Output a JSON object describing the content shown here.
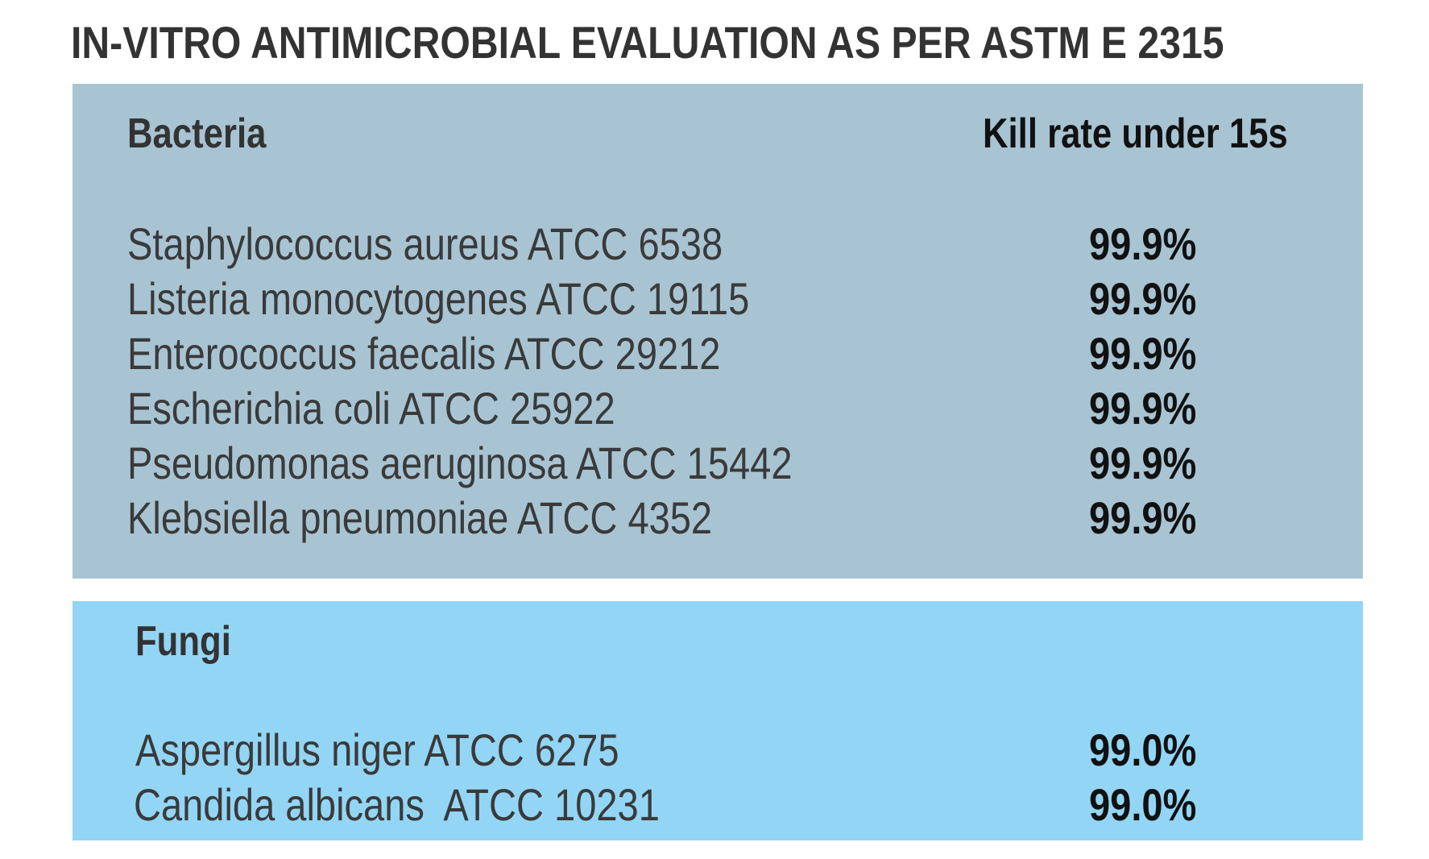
{
  "title": "IN-VITRO ANTIMICROBIAL EVALUATION AS PER ASTM E 2315",
  "bacteria": {
    "heading": "Bacteria",
    "column_heading": "Kill rate under 15s",
    "rows": [
      {
        "organism": "Staphylococcus aureus ATCC 6538",
        "kill_rate": "99.9%"
      },
      {
        "organism": "Listeria monocytogenes ATCC 19115",
        "kill_rate": "99.9%"
      },
      {
        "organism": "Enterococcus faecalis ATCC 29212",
        "kill_rate": "99.9%"
      },
      {
        "organism": "Escherichia coli ATCC 25922",
        "kill_rate": "99.9%"
      },
      {
        "organism": "Pseudomonas aeruginosa ATCC 15442",
        "kill_rate": "99.9%"
      },
      {
        "organism": "Klebsiella pneumoniae ATCC 4352",
        "kill_rate": "99.9%"
      }
    ]
  },
  "fungi": {
    "heading": "Fungi",
    "rows": [
      {
        "organism": "Aspergillus niger ATCC 6275",
        "kill_rate": "99.0%"
      },
      {
        "organism": "Candida albicans  ATCC 10231",
        "kill_rate": "99.0%"
      }
    ]
  },
  "colors": {
    "bacteria_panel": "#a8c4d3",
    "fungi_panel": "#93d5f5",
    "title_text": "#333333"
  }
}
